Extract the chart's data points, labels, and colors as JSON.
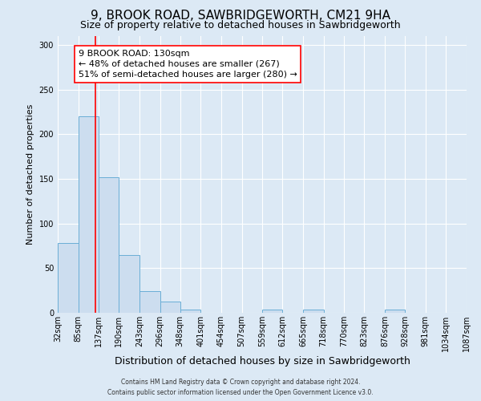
{
  "title": "9, BROOK ROAD, SAWBRIDGEWORTH, CM21 9HA",
  "subtitle": "Size of property relative to detached houses in Sawbridgeworth",
  "xlabel": "Distribution of detached houses by size in Sawbridgeworth",
  "ylabel": "Number of detached properties",
  "bin_edges": [
    32,
    85,
    137,
    190,
    243,
    296,
    348,
    401,
    454,
    507,
    559,
    612,
    665,
    718,
    770,
    823,
    876,
    928,
    981,
    1034,
    1087
  ],
  "bar_heights": [
    78,
    220,
    152,
    65,
    24,
    13,
    4,
    0,
    0,
    0,
    4,
    0,
    4,
    0,
    0,
    0,
    4,
    0,
    0,
    0
  ],
  "bar_color": "#ccddef",
  "bar_edge_color": "#6aaed6",
  "red_line_x": 130,
  "ylim": [
    0,
    310
  ],
  "yticks": [
    0,
    50,
    100,
    150,
    200,
    250,
    300
  ],
  "annotation_box_text": "9 BROOK ROAD: 130sqm\n← 48% of detached houses are smaller (267)\n51% of semi-detached houses are larger (280) →",
  "footer_line1": "Contains HM Land Registry data © Crown copyright and database right 2024.",
  "footer_line2": "Contains public sector information licensed under the Open Government Licence v3.0.",
  "background_color": "#dce9f5",
  "grid_color": "#ffffff",
  "title_fontsize": 11,
  "subtitle_fontsize": 9,
  "xlabel_fontsize": 9,
  "ylabel_fontsize": 8,
  "tick_fontsize": 7,
  "annotation_fontsize": 8,
  "footer_fontsize": 5.5
}
